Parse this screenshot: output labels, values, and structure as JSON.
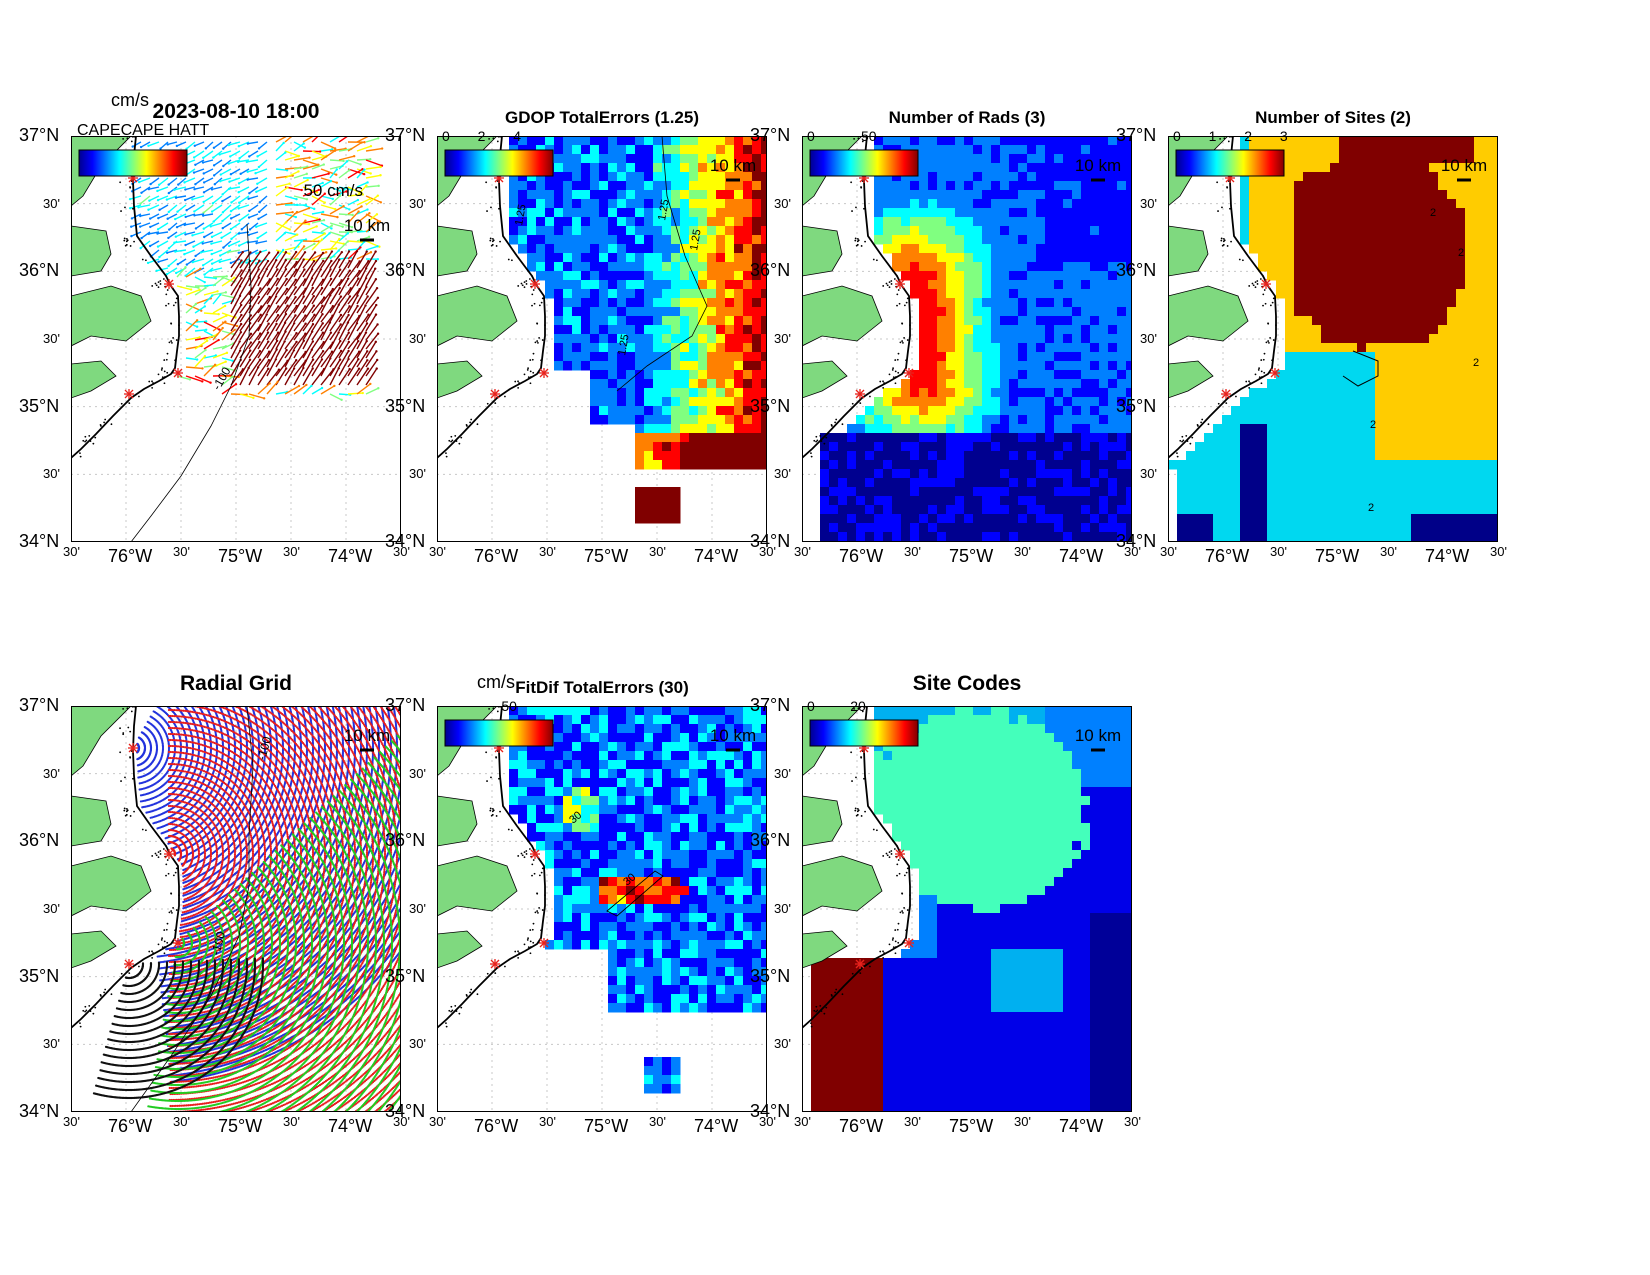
{
  "panels": [
    {
      "id": "total-vectors",
      "title": "2023-08-10 18:00",
      "colorbar_unit": "cm/s",
      "colorbar_ticks": [],
      "scale_vector_label": "50 cm/s",
      "scale_bar_label": "10 km",
      "contour_labels": [
        "-100"
      ],
      "overprinted_text": "CAPECAPE HATT"
    },
    {
      "id": "gdop",
      "title": "GDOP TotalErrors (1.25)",
      "colorbar_ticks": [
        "0",
        "2",
        "4"
      ],
      "scale_bar_label": "10 km",
      "contour_labels": [
        "1.25",
        "1.25",
        "1.25",
        "1.25"
      ]
    },
    {
      "id": "num-rads",
      "title": "Number of Rads (3)",
      "colorbar_ticks": [
        "0",
        "50"
      ],
      "scale_bar_label": "10 km"
    },
    {
      "id": "num-sites",
      "title": "Number of Sites (2)",
      "colorbar_ticks": [
        "0",
        "1",
        "2",
        "3"
      ],
      "scale_bar_label": "10 km",
      "contour_labels": [
        "2",
        "2",
        "2",
        "2",
        "2"
      ]
    },
    {
      "id": "radial-grid",
      "title": "Radial Grid",
      "scale_bar_label": "10 km",
      "contour_labels": [
        "-100",
        "-100"
      ]
    },
    {
      "id": "fitdif",
      "title": "FitDif TotalErrors (30)",
      "colorbar_unit": "cm/s",
      "colorbar_ticks": [
        "50"
      ],
      "scale_bar_label": "10 km",
      "contour_labels": [
        "30",
        "30"
      ]
    },
    {
      "id": "site-codes",
      "title": "Site Codes",
      "colorbar_ticks": [
        "0",
        "20"
      ],
      "scale_bar_label": "10 km"
    }
  ],
  "axes": {
    "lat_labels": [
      "37°N",
      "30'",
      "36°N",
      "30'",
      "35°N",
      "30'",
      "34°N"
    ],
    "lon_labels": [
      "30'",
      "76°W",
      "30'",
      "75°W",
      "30'",
      "74°W",
      "30'"
    ]
  },
  "colors": {
    "land": "#7fd97f",
    "station_marker": "#e8231d",
    "jet_colormap": [
      "#00008f",
      "#0000ff",
      "#0080ff",
      "#00ffff",
      "#80ff80",
      "#ffff00",
      "#ff8000",
      "#ff0000",
      "#800000"
    ],
    "radial_sites": [
      "#2233dd",
      "#e81c1c",
      "#22cc22",
      "#111111"
    ]
  }
}
